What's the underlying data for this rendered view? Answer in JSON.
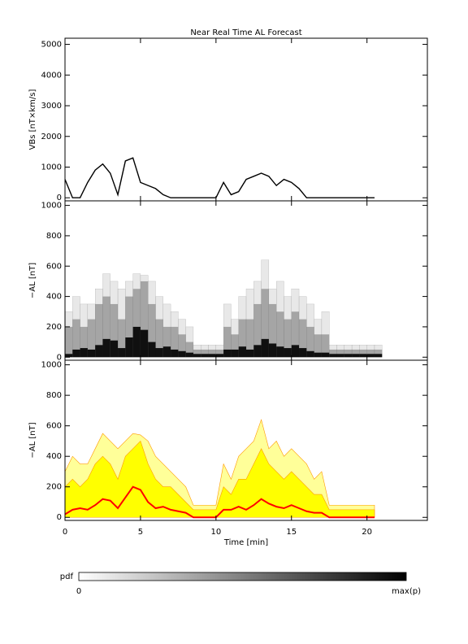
{
  "chart_data": [
    {
      "type": "line",
      "title": "Near Real Time AL Forecast",
      "ylabel": "VBs [nT×km/s]",
      "xlim": [
        0,
        24
      ],
      "xticks": [
        0,
        5,
        10,
        15,
        20
      ],
      "ylim": [
        -100,
        5200
      ],
      "yticks": [
        0,
        1000,
        2000,
        3000,
        4000,
        5000
      ],
      "x": [
        0,
        0.5,
        1,
        1.5,
        2,
        2.5,
        3,
        3.5,
        4,
        4.5,
        5,
        5.5,
        6,
        6.5,
        7,
        7.5,
        8,
        8.5,
        9,
        9.5,
        10,
        10.5,
        11,
        11.5,
        12,
        12.5,
        13,
        13.5,
        14,
        14.5,
        15,
        15.5,
        16,
        16.5,
        17,
        17.5,
        18,
        18.5,
        19,
        19.5,
        20,
        20.5
      ],
      "series": [
        {
          "color": "#000000",
          "values": [
            600,
            0,
            0,
            500,
            900,
            1100,
            800,
            100,
            1200,
            1300,
            500,
            400,
            300,
            100,
            0,
            0,
            0,
            0,
            0,
            0,
            0,
            500,
            100,
            200,
            600,
            700,
            800,
            700,
            400,
            600,
            500,
            300,
            0,
            0,
            0,
            0,
            0,
            0,
            0,
            0,
            0,
            0
          ]
        }
      ]
    },
    {
      "type": "heatmap",
      "ylabel": "−AL [nT]",
      "xlim": [
        0,
        24
      ],
      "xticks": [
        0,
        5,
        10,
        15,
        20
      ],
      "ylim": [
        -20,
        1030
      ],
      "yticks": [
        0,
        200,
        400,
        600,
        800,
        1000
      ],
      "x": [
        0,
        0.5,
        1,
        1.5,
        2,
        2.5,
        3,
        3.5,
        4,
        4.5,
        5,
        5.5,
        6,
        6.5,
        7,
        7.5,
        8,
        8.5,
        9,
        9.5,
        10,
        10.5,
        11,
        11.5,
        12,
        12.5,
        13,
        13.5,
        14,
        14.5,
        15,
        15.5,
        16,
        16.5,
        17,
        17.5,
        18,
        18.5,
        19,
        19.5,
        20,
        20.5
      ],
      "series": [
        {
          "color": "#000000",
          "values": [
            20,
            50,
            60,
            50,
            80,
            120,
            110,
            60,
            130,
            200,
            180,
            100,
            60,
            70,
            50,
            40,
            30,
            0,
            0,
            0,
            0,
            50,
            50,
            70,
            50,
            80,
            120,
            90,
            70,
            60,
            80,
            60,
            40,
            30,
            30,
            0,
            0,
            0,
            0,
            0,
            0,
            0
          ]
        },
        {
          "color": "#555555",
          "values": [
            200,
            250,
            200,
            250,
            350,
            400,
            350,
            250,
            400,
            450,
            500,
            350,
            250,
            200,
            200,
            150,
            100,
            50,
            50,
            50,
            50,
            200,
            150,
            250,
            250,
            350,
            450,
            350,
            300,
            250,
            300,
            250,
            200,
            150,
            150,
            50,
            50,
            50,
            50,
            50,
            50,
            50
          ]
        },
        {
          "color": "#cccccc",
          "values": [
            300,
            400,
            350,
            350,
            450,
            550,
            500,
            450,
            500,
            550,
            540,
            500,
            400,
            350,
            300,
            250,
            200,
            80,
            80,
            80,
            80,
            350,
            250,
            400,
            450,
            500,
            640,
            450,
            500,
            400,
            450,
            400,
            350,
            250,
            300,
            80,
            80,
            80,
            80,
            80,
            80,
            80
          ]
        }
      ]
    },
    {
      "type": "area",
      "ylabel": "−AL [nT]",
      "xlabel": "Time [min]",
      "xlim": [
        0,
        24
      ],
      "xticks": [
        0,
        5,
        10,
        15,
        20
      ],
      "ylim": [
        -20,
        1030
      ],
      "yticks": [
        0,
        200,
        400,
        600,
        800,
        1000
      ],
      "x": [
        0,
        0.5,
        1,
        1.5,
        2,
        2.5,
        3,
        3.5,
        4,
        4.5,
        5,
        5.5,
        6,
        6.5,
        7,
        7.5,
        8,
        8.5,
        9,
        9.5,
        10,
        10.5,
        11,
        11.5,
        12,
        12.5,
        13,
        13.5,
        14,
        14.5,
        15,
        15.5,
        16,
        16.5,
        17,
        17.5,
        18,
        18.5,
        19,
        19.5,
        20,
        20.5
      ],
      "series": [
        {
          "color": "#ffff99",
          "values": [
            300,
            400,
            350,
            350,
            450,
            550,
            500,
            450,
            500,
            550,
            540,
            500,
            400,
            350,
            300,
            250,
            200,
            80,
            80,
            80,
            80,
            350,
            250,
            400,
            450,
            500,
            640,
            450,
            500,
            400,
            450,
            400,
            350,
            250,
            300,
            80,
            80,
            80,
            80,
            80,
            80,
            80
          ]
        },
        {
          "color": "#ffff00",
          "values": [
            200,
            250,
            200,
            250,
            350,
            400,
            350,
            250,
            400,
            450,
            500,
            350,
            250,
            200,
            200,
            150,
            100,
            50,
            50,
            50,
            50,
            200,
            150,
            250,
            250,
            350,
            450,
            350,
            300,
            250,
            300,
            250,
            200,
            150,
            150,
            50,
            50,
            50,
            50,
            50,
            50,
            50
          ]
        },
        {
          "color": "#ff0000",
          "values": [
            20,
            50,
            60,
            50,
            80,
            120,
            110,
            60,
            130,
            200,
            180,
            100,
            60,
            70,
            50,
            40,
            30,
            0,
            0,
            0,
            0,
            50,
            50,
            70,
            50,
            80,
            120,
            90,
            70,
            60,
            80,
            60,
            40,
            30,
            30,
            0,
            0,
            0,
            0,
            0,
            0,
            0
          ]
        }
      ]
    }
  ],
  "colorbar": {
    "label": "pdf",
    "min_label": "0",
    "max_label": "max(p)"
  }
}
